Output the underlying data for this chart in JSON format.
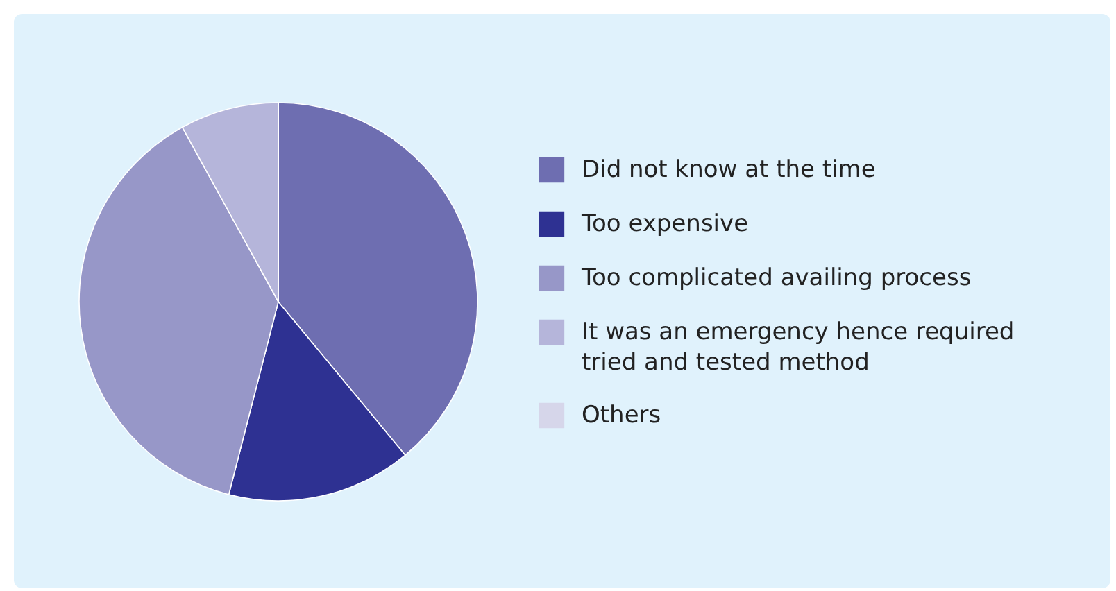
{
  "chart_data": {
    "type": "pie",
    "categories": [
      "Did not know at the time",
      "Too expensive",
      "Too complicated availing process",
      "It was an emergency hence required tried and tested method",
      "Others"
    ],
    "values": [
      39,
      15,
      38,
      8,
      0
    ],
    "colors": [
      "#6e6eb1",
      "#2e3192",
      "#9797c8",
      "#b5b5da",
      "#d6d6ea"
    ],
    "legend": "right"
  }
}
